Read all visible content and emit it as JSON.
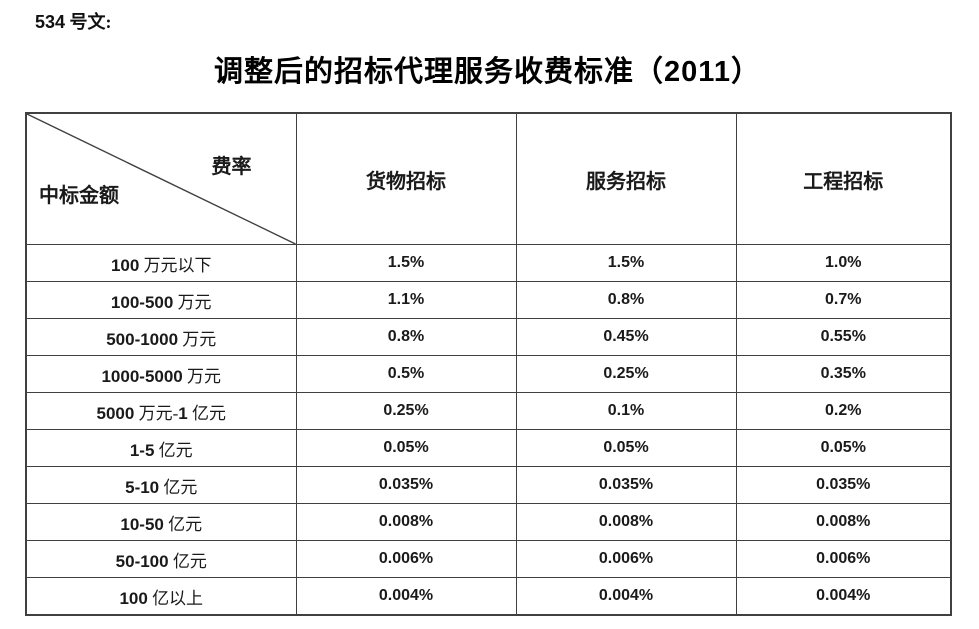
{
  "doc_number": "534 号文:",
  "title": "调整后的招标代理服务收费标准（2011）",
  "colors": {
    "border": "#404040",
    "text": "#1a1a1a",
    "background": "#ffffff"
  },
  "table": {
    "corner": {
      "top_right": "费率",
      "bottom_left": "中标金额"
    },
    "columns": [
      "货物招标",
      "服务招标",
      "工程招标"
    ],
    "rows": [
      {
        "label": "100 万元以下",
        "values": [
          "1.5%",
          "1.5%",
          "1.0%"
        ]
      },
      {
        "label": "100-500 万元",
        "values": [
          "1.1%",
          "0.8%",
          "0.7%"
        ]
      },
      {
        "label": "500-1000 万元",
        "values": [
          "0.8%",
          "0.45%",
          "0.55%"
        ]
      },
      {
        "label": "1000-5000 万元",
        "values": [
          "0.5%",
          "0.25%",
          "0.35%"
        ]
      },
      {
        "label": "5000 万元-1 亿元",
        "values": [
          "0.25%",
          "0.1%",
          "0.2%"
        ]
      },
      {
        "label": "1-5 亿元",
        "values": [
          "0.05%",
          "0.05%",
          "0.05%"
        ]
      },
      {
        "label": "5-10 亿元",
        "values": [
          "0.035%",
          "0.035%",
          "0.035%"
        ]
      },
      {
        "label": "10-50 亿元",
        "values": [
          "0.008%",
          "0.008%",
          "0.008%"
        ]
      },
      {
        "label": "50-100 亿元",
        "values": [
          "0.006%",
          "0.006%",
          "0.006%"
        ]
      },
      {
        "label": "100 亿以上",
        "values": [
          "0.004%",
          "0.004%",
          "0.004%"
        ]
      }
    ]
  }
}
